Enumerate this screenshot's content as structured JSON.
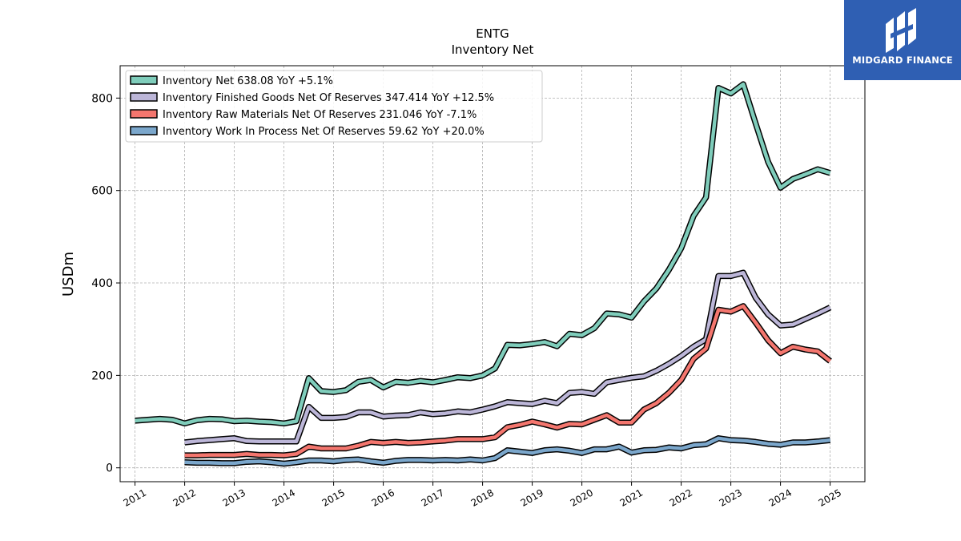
{
  "header": {
    "title": "ENTG",
    "subtitle": "Inventory Net"
  },
  "logo": {
    "text": "MIDGARD FINANCE",
    "color": "#2f5fb3"
  },
  "chart_data": {
    "type": "line",
    "title": "ENTG",
    "subtitle": "Inventory Net",
    "xlabel": "",
    "ylabel": "USDm",
    "xlim": [
      2010.7,
      2025.7
    ],
    "ylim": [
      -30,
      870
    ],
    "yticks": [
      0,
      200,
      400,
      600,
      800
    ],
    "xticks": [
      "2011",
      "2012",
      "2013",
      "2014",
      "2015",
      "2016",
      "2017",
      "2018",
      "2019",
      "2020",
      "2021",
      "2022",
      "2023",
      "2024",
      "2025"
    ],
    "grid": true,
    "legend_position": "top-left",
    "series": [
      {
        "name": "Inventory Net  638.08 YoY +5.1%",
        "color": "#7fcdbb",
        "points": [
          [
            2011.0,
            102
          ],
          [
            2011.25,
            104
          ],
          [
            2011.5,
            106
          ],
          [
            2011.75,
            104
          ],
          [
            2012.0,
            96
          ],
          [
            2012.25,
            103
          ],
          [
            2012.5,
            106
          ],
          [
            2012.75,
            105
          ],
          [
            2013.0,
            101
          ],
          [
            2013.25,
            102
          ],
          [
            2013.5,
            100
          ],
          [
            2013.75,
            99
          ],
          [
            2014.0,
            96
          ],
          [
            2014.25,
            101
          ],
          [
            2014.5,
            194
          ],
          [
            2014.75,
            166
          ],
          [
            2015.0,
            164
          ],
          [
            2015.25,
            168
          ],
          [
            2015.5,
            186
          ],
          [
            2015.75,
            190
          ],
          [
            2016.0,
            174
          ],
          [
            2016.25,
            186
          ],
          [
            2016.5,
            184
          ],
          [
            2016.75,
            188
          ],
          [
            2017.0,
            185
          ],
          [
            2017.25,
            190
          ],
          [
            2017.5,
            196
          ],
          [
            2017.75,
            194
          ],
          [
            2018.0,
            200
          ],
          [
            2018.25,
            215
          ],
          [
            2018.5,
            266
          ],
          [
            2018.75,
            265
          ],
          [
            2019.0,
            268
          ],
          [
            2019.25,
            272
          ],
          [
            2019.5,
            263
          ],
          [
            2019.75,
            290
          ],
          [
            2020.0,
            287
          ],
          [
            2020.25,
            302
          ],
          [
            2020.5,
            334
          ],
          [
            2020.75,
            332
          ],
          [
            2021.0,
            325
          ],
          [
            2021.25,
            360
          ],
          [
            2021.5,
            388
          ],
          [
            2021.75,
            428
          ],
          [
            2022.0,
            475
          ],
          [
            2022.25,
            545
          ],
          [
            2022.5,
            585
          ],
          [
            2022.75,
            822
          ],
          [
            2023.0,
            810
          ],
          [
            2023.25,
            830
          ],
          [
            2023.5,
            745
          ],
          [
            2023.75,
            662
          ],
          [
            2024.0,
            606
          ],
          [
            2024.25,
            625
          ],
          [
            2024.5,
            635
          ],
          [
            2024.75,
            646
          ],
          [
            2025.0,
            638
          ]
        ]
      },
      {
        "name": "Inventory Finished Goods Net Of Reserves  347.414 YoY +12.5%",
        "color": "#bcb6d8",
        "points": [
          [
            2012.0,
            55
          ],
          [
            2012.25,
            58
          ],
          [
            2012.5,
            60
          ],
          [
            2012.75,
            62
          ],
          [
            2013.0,
            64
          ],
          [
            2013.25,
            58
          ],
          [
            2013.5,
            57
          ],
          [
            2013.75,
            57
          ],
          [
            2014.0,
            57
          ],
          [
            2014.25,
            57
          ],
          [
            2014.5,
            132
          ],
          [
            2014.75,
            108
          ],
          [
            2015.0,
            108
          ],
          [
            2015.25,
            110
          ],
          [
            2015.5,
            120
          ],
          [
            2015.75,
            120
          ],
          [
            2016.0,
            111
          ],
          [
            2016.25,
            113
          ],
          [
            2016.5,
            114
          ],
          [
            2016.75,
            120
          ],
          [
            2017.0,
            116
          ],
          [
            2017.25,
            118
          ],
          [
            2017.5,
            122
          ],
          [
            2017.75,
            120
          ],
          [
            2018.0,
            126
          ],
          [
            2018.25,
            133
          ],
          [
            2018.5,
            142
          ],
          [
            2018.75,
            140
          ],
          [
            2019.0,
            138
          ],
          [
            2019.25,
            145
          ],
          [
            2019.5,
            140
          ],
          [
            2019.75,
            162
          ],
          [
            2020.0,
            164
          ],
          [
            2020.25,
            160
          ],
          [
            2020.5,
            185
          ],
          [
            2020.75,
            190
          ],
          [
            2021.0,
            195
          ],
          [
            2021.25,
            198
          ],
          [
            2021.5,
            210
          ],
          [
            2021.75,
            225
          ],
          [
            2022.0,
            242
          ],
          [
            2022.25,
            262
          ],
          [
            2022.5,
            278
          ],
          [
            2022.75,
            415
          ],
          [
            2023.0,
            415
          ],
          [
            2023.25,
            422
          ],
          [
            2023.5,
            368
          ],
          [
            2023.75,
            332
          ],
          [
            2024.0,
            308
          ],
          [
            2024.25,
            310
          ],
          [
            2024.5,
            322
          ],
          [
            2024.75,
            334
          ],
          [
            2025.0,
            347
          ]
        ]
      },
      {
        "name": "Inventory Raw Materials Net Of Reserves  231.046 YoY -7.1%",
        "color": "#f4766e",
        "points": [
          [
            2012.0,
            27
          ],
          [
            2012.25,
            27
          ],
          [
            2012.5,
            28
          ],
          [
            2012.75,
            28
          ],
          [
            2013.0,
            28
          ],
          [
            2013.25,
            30
          ],
          [
            2013.5,
            28
          ],
          [
            2013.75,
            28
          ],
          [
            2014.0,
            27
          ],
          [
            2014.25,
            30
          ],
          [
            2014.5,
            46
          ],
          [
            2014.75,
            42
          ],
          [
            2015.0,
            42
          ],
          [
            2015.25,
            42
          ],
          [
            2015.5,
            48
          ],
          [
            2015.75,
            56
          ],
          [
            2016.0,
            54
          ],
          [
            2016.25,
            56
          ],
          [
            2016.5,
            54
          ],
          [
            2016.75,
            55
          ],
          [
            2017.0,
            57
          ],
          [
            2017.25,
            59
          ],
          [
            2017.5,
            62
          ],
          [
            2017.75,
            62
          ],
          [
            2018.0,
            62
          ],
          [
            2018.25,
            66
          ],
          [
            2018.5,
            88
          ],
          [
            2018.75,
            93
          ],
          [
            2019.0,
            100
          ],
          [
            2019.25,
            94
          ],
          [
            2019.5,
            87
          ],
          [
            2019.75,
            95
          ],
          [
            2020.0,
            94
          ],
          [
            2020.25,
            104
          ],
          [
            2020.5,
            114
          ],
          [
            2020.75,
            98
          ],
          [
            2021.0,
            98
          ],
          [
            2021.25,
            126
          ],
          [
            2021.5,
            140
          ],
          [
            2021.75,
            162
          ],
          [
            2022.0,
            190
          ],
          [
            2022.25,
            236
          ],
          [
            2022.5,
            258
          ],
          [
            2022.75,
            342
          ],
          [
            2023.0,
            338
          ],
          [
            2023.25,
            350
          ],
          [
            2023.5,
            314
          ],
          [
            2023.75,
            276
          ],
          [
            2024.0,
            248
          ],
          [
            2024.25,
            262
          ],
          [
            2024.5,
            256
          ],
          [
            2024.75,
            252
          ],
          [
            2025.0,
            231
          ]
        ]
      },
      {
        "name": "Inventory Work In Process Net Of Reserves  59.62 YoY +20.0%",
        "color": "#7ba7cc",
        "points": [
          [
            2012.0,
            12
          ],
          [
            2012.25,
            11
          ],
          [
            2012.5,
            11
          ],
          [
            2012.75,
            10
          ],
          [
            2013.0,
            10
          ],
          [
            2013.25,
            13
          ],
          [
            2013.5,
            14
          ],
          [
            2013.75,
            12
          ],
          [
            2014.0,
            9
          ],
          [
            2014.25,
            12
          ],
          [
            2014.5,
            16
          ],
          [
            2014.75,
            16
          ],
          [
            2015.0,
            14
          ],
          [
            2015.25,
            17
          ],
          [
            2015.5,
            18
          ],
          [
            2015.75,
            14
          ],
          [
            2016.0,
            11
          ],
          [
            2016.25,
            15
          ],
          [
            2016.5,
            17
          ],
          [
            2016.75,
            17
          ],
          [
            2017.0,
            16
          ],
          [
            2017.25,
            17
          ],
          [
            2017.5,
            16
          ],
          [
            2017.75,
            18
          ],
          [
            2018.0,
            16
          ],
          [
            2018.25,
            21
          ],
          [
            2018.5,
            38
          ],
          [
            2018.75,
            35
          ],
          [
            2019.0,
            32
          ],
          [
            2019.25,
            38
          ],
          [
            2019.5,
            40
          ],
          [
            2019.75,
            37
          ],
          [
            2020.0,
            32
          ],
          [
            2020.25,
            40
          ],
          [
            2020.5,
            40
          ],
          [
            2020.75,
            46
          ],
          [
            2021.0,
            33
          ],
          [
            2021.25,
            38
          ],
          [
            2021.5,
            39
          ],
          [
            2021.75,
            44
          ],
          [
            2022.0,
            42
          ],
          [
            2022.25,
            49
          ],
          [
            2022.5,
            51
          ],
          [
            2022.75,
            64
          ],
          [
            2023.0,
            60
          ],
          [
            2023.25,
            59
          ],
          [
            2023.5,
            56
          ],
          [
            2023.75,
            52
          ],
          [
            2024.0,
            50
          ],
          [
            2024.25,
            55
          ],
          [
            2024.5,
            55
          ],
          [
            2024.75,
            57
          ],
          [
            2025.0,
            60
          ]
        ]
      }
    ]
  }
}
